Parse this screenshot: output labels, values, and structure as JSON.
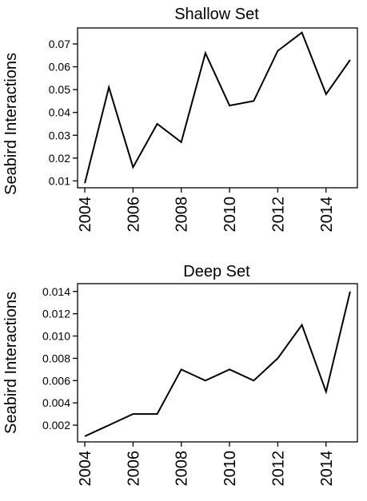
{
  "chart_data": [
    {
      "type": "line",
      "title": "Shallow Set",
      "xlabel": "",
      "ylabel": "Seabird Interactions",
      "x": [
        2004,
        2005,
        2006,
        2007,
        2008,
        2009,
        2010,
        2011,
        2012,
        2013,
        2014,
        2015
      ],
      "series": [
        {
          "values": [
            0.009,
            0.051,
            0.016,
            0.035,
            0.027,
            0.066,
            0.043,
            0.045,
            0.067,
            0.075,
            0.048,
            0.063
          ]
        }
      ],
      "xticks": [
        "2004",
        "2006",
        "2008",
        "2010",
        "2012",
        "2014"
      ],
      "yticks": [
        "0.01",
        "0.02",
        "0.03",
        "0.04",
        "0.05",
        "0.06",
        "0.07"
      ],
      "xlim": [
        2003.7,
        2015.3
      ],
      "ylim": [
        0.007,
        0.077
      ],
      "grid": false,
      "line_color": "#000000"
    },
    {
      "type": "line",
      "title": "Deep Set",
      "xlabel": "",
      "ylabel": "Seabird Interactions",
      "x": [
        2004,
        2005,
        2006,
        2007,
        2008,
        2009,
        2010,
        2011,
        2012,
        2013,
        2014,
        2015
      ],
      "series": [
        {
          "values": [
            0.001,
            0.002,
            0.003,
            0.003,
            0.007,
            0.006,
            0.007,
            0.006,
            0.008,
            0.011,
            0.005,
            0.014
          ]
        }
      ],
      "xticks": [
        "2004",
        "2006",
        "2008",
        "2010",
        "2012",
        "2014"
      ],
      "yticks": [
        "0.002",
        "0.004",
        "0.006",
        "0.008",
        "0.010",
        "0.012",
        "0.014"
      ],
      "xlim": [
        2003.7,
        2015.3
      ],
      "ylim": [
        0.0005,
        0.0147
      ],
      "grid": false,
      "line_color": "#000000"
    }
  ]
}
